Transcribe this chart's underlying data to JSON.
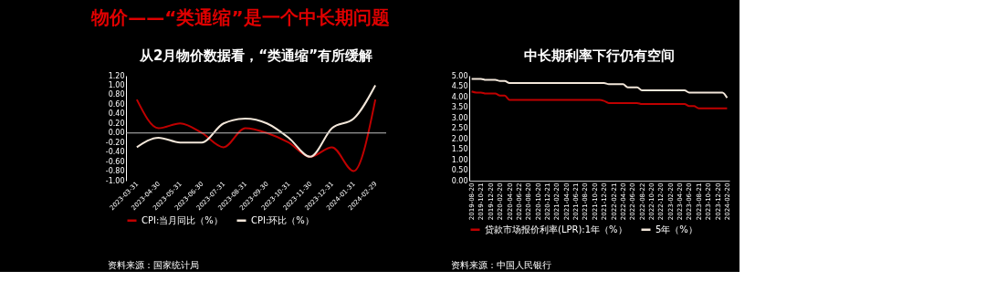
{
  "chart_data": [
    {
      "type": "line",
      "title": "从2月物价数据看，“类通缩”有所缓解",
      "annotations": [
        "物价——“类通缩”是一个中长期问题",
        "资料来源：国家统计局"
      ],
      "categories": [
        "2023-03-31",
        "2023-04-30",
        "2023-05-31",
        "2023-06-30",
        "2023-07-31",
        "2023-08-31",
        "2023-09-30",
        "2023-10-31",
        "2023-11-30",
        "2023-12-31",
        "2024-01-31",
        "2024-02-29"
      ],
      "series": [
        {
          "name": "CPI:当月同比（%）",
          "color": "#c00000",
          "values": [
            0.7,
            0.1,
            0.2,
            0.0,
            -0.3,
            0.1,
            0.0,
            -0.2,
            -0.5,
            -0.3,
            -0.8,
            0.7
          ]
        },
        {
          "name": "CPI:环比（%）",
          "color": "#f2e6d9",
          "values": [
            -0.3,
            -0.1,
            -0.2,
            -0.2,
            0.2,
            0.3,
            0.2,
            -0.1,
            -0.5,
            0.1,
            0.3,
            1.0
          ]
        }
      ],
      "ylim": [
        -1.0,
        1.2
      ],
      "yticks": [
        {
          "value": -1.0,
          "label": "-1.00"
        },
        {
          "value": -0.8,
          "label": "-0.80"
        },
        {
          "value": -0.6,
          "label": "-0.60"
        },
        {
          "value": -0.4,
          "label": "-0.40"
        },
        {
          "value": -0.2,
          "label": "-0.20"
        },
        {
          "value": 0,
          "label": "0.00"
        },
        {
          "value": 0.2,
          "label": "0.20"
        },
        {
          "value": 0.4,
          "label": "0.40"
        },
        {
          "value": 0.6,
          "label": "0.60"
        },
        {
          "value": 0.8,
          "label": "0.80"
        },
        {
          "value": 1.0,
          "label": "1.00"
        },
        {
          "value": 1.2,
          "label": "1.20"
        }
      ],
      "ref_lines": [
        {
          "axis": "y",
          "value": 0,
          "color": "#bfbfbf"
        }
      ],
      "grid": false,
      "legend": "bottom"
    },
    {
      "type": "line",
      "title": "中长期利率下行仍有空间",
      "annotations": [
        "资料来源：中国人民银行"
      ],
      "categories": [
        "2019-08-20",
        null,
        "2019-10-21",
        null,
        "2019-12-20",
        null,
        "2020-02-20",
        null,
        "2020-04-20",
        null,
        "2020-06-22",
        null,
        "2020-08-20",
        null,
        "2020-10-20",
        null,
        "2020-12-21",
        null,
        "2021-02-20",
        null,
        "2021-04-20",
        null,
        "2021-06-21",
        null,
        "2021-08-20",
        null,
        "2021-10-20",
        null,
        "2021-12-20",
        null,
        "2022-02-21",
        null,
        "2022-04-20",
        null,
        "2022-06-20",
        null,
        "2022-08-22",
        null,
        "2022-10-20",
        null,
        "2022-12-20",
        null,
        "2023-02-20",
        null,
        "2023-04-20",
        null,
        "2023-06-20",
        null,
        "2023-08-21",
        null,
        "2023-10-20",
        null,
        "2023-12-20",
        null,
        "2024-02-20"
      ],
      "series": [
        {
          "name": "贷款市场报价利率(LPR):1年（%）",
          "color": "#c00000",
          "values": [
            4.25,
            4.2,
            4.2,
            4.15,
            4.15,
            4.15,
            4.05,
            4.05,
            3.85,
            3.85,
            3.85,
            3.85,
            3.85,
            3.85,
            3.85,
            3.85,
            3.85,
            3.85,
            3.85,
            3.85,
            3.85,
            3.85,
            3.85,
            3.85,
            3.85,
            3.85,
            3.85,
            3.85,
            3.8,
            3.7,
            3.7,
            3.7,
            3.7,
            3.7,
            3.7,
            3.7,
            3.65,
            3.65,
            3.65,
            3.65,
            3.65,
            3.65,
            3.65,
            3.65,
            3.65,
            3.65,
            3.55,
            3.55,
            3.45,
            3.45,
            3.45,
            3.45,
            3.45,
            3.45,
            3.45
          ]
        },
        {
          "name": "5年（%）",
          "color": "#f2e6d9",
          "values": [
            4.85,
            4.85,
            4.85,
            4.8,
            4.8,
            4.8,
            4.75,
            4.75,
            4.65,
            4.65,
            4.65,
            4.65,
            4.65,
            4.65,
            4.65,
            4.65,
            4.65,
            4.65,
            4.65,
            4.65,
            4.65,
            4.65,
            4.65,
            4.65,
            4.65,
            4.65,
            4.65,
            4.65,
            4.65,
            4.6,
            4.6,
            4.6,
            4.6,
            4.45,
            4.45,
            4.45,
            4.3,
            4.3,
            4.3,
            4.3,
            4.3,
            4.3,
            4.3,
            4.3,
            4.3,
            4.3,
            4.2,
            4.2,
            4.2,
            4.2,
            4.2,
            4.2,
            4.2,
            4.2,
            3.95
          ]
        }
      ],
      "ylim": [
        0,
        5
      ],
      "yticks": [
        {
          "value": 0,
          "label": "0.00"
        },
        {
          "value": 0.5,
          "label": "0.50"
        },
        {
          "value": 1.0,
          "label": "1.00"
        },
        {
          "value": 1.5,
          "label": "1.50"
        },
        {
          "value": 2.0,
          "label": "2.00"
        },
        {
          "value": 2.5,
          "label": "2.50"
        },
        {
          "value": 3.0,
          "label": "3.00"
        },
        {
          "value": 3.5,
          "label": "3.50"
        },
        {
          "value": 4.0,
          "label": "4.00"
        },
        {
          "value": 4.5,
          "label": "4.50"
        },
        {
          "value": 5.0,
          "label": "5.00"
        }
      ],
      "grid": false,
      "legend": "bottom"
    }
  ]
}
